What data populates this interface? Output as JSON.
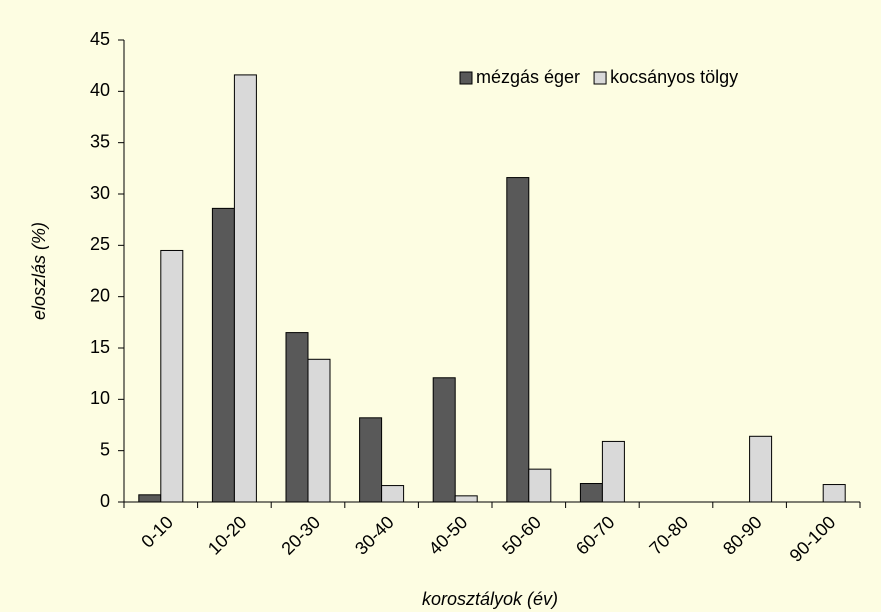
{
  "chart_data": {
    "type": "bar",
    "xlabel": "korosztályok (év)",
    "ylabel": "eloszlás (%)",
    "categories": [
      "0-10",
      "10-20",
      "20-30",
      "30-40",
      "40-50",
      "50-60",
      "60-70",
      "70-80",
      "80-90",
      "90-100"
    ],
    "series": [
      {
        "name": "mézgás éger",
        "color": "#595959",
        "values": [
          0.7,
          28.6,
          16.5,
          8.2,
          12.1,
          31.6,
          1.8,
          0,
          0,
          0
        ]
      },
      {
        "name": "kocsányos tölgy",
        "color": "#d9d9d9",
        "values": [
          24.5,
          41.6,
          13.9,
          1.6,
          0.6,
          3.2,
          5.9,
          0,
          6.4,
          1.7
        ]
      }
    ],
    "ylim": [
      0,
      45
    ],
    "yticks": [
      0,
      5,
      10,
      15,
      20,
      25,
      30,
      35,
      40,
      45
    ],
    "grid": false,
    "legend": "top-right"
  }
}
